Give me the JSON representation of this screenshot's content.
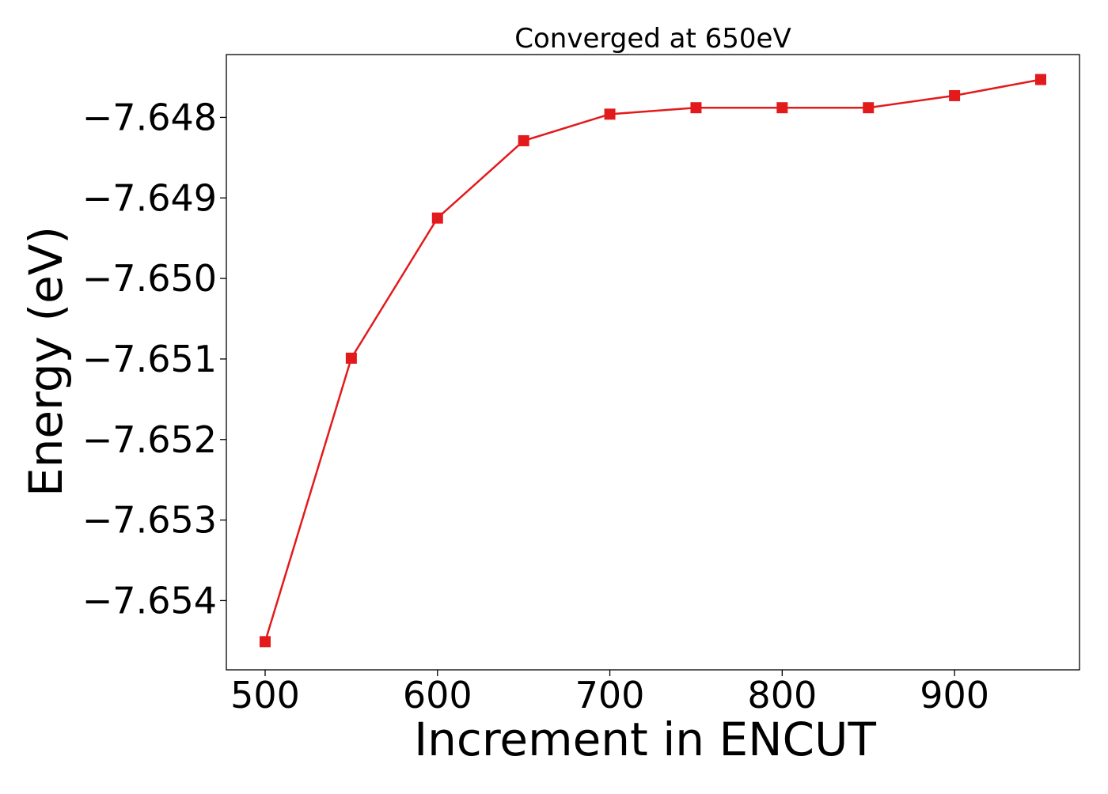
{
  "chart_data": {
    "type": "line",
    "title": "Converged at 650eV",
    "xlabel": "Increment in ENCUT",
    "ylabel": "Energy (eV)",
    "xlim": [
      477.5,
      972.5
    ],
    "ylim": [
      -7.65486,
      -7.64722
    ],
    "x_ticks": [
      500,
      600,
      700,
      800,
      900
    ],
    "y_ticks": [
      -7.654,
      -7.653,
      -7.652,
      -7.651,
      -7.65,
      -7.649,
      -7.648
    ],
    "x_tick_labels": [
      "500",
      "600",
      "700",
      "800",
      "900"
    ],
    "y_tick_labels": [
      "−7.654",
      "−7.653",
      "−7.652",
      "−7.651",
      "−7.650",
      "−7.649",
      "−7.648"
    ],
    "grid": false,
    "series": [
      {
        "color": "#e31a1c",
        "marker": "square",
        "x": [
          500,
          550,
          600,
          650,
          700,
          750,
          800,
          850,
          900,
          950
        ],
        "y": [
          -7.65451,
          -7.65099,
          -7.64925,
          -7.64829,
          -7.64796,
          -7.64788,
          -7.64788,
          -7.64788,
          -7.64773,
          -7.64753
        ]
      }
    ]
  }
}
